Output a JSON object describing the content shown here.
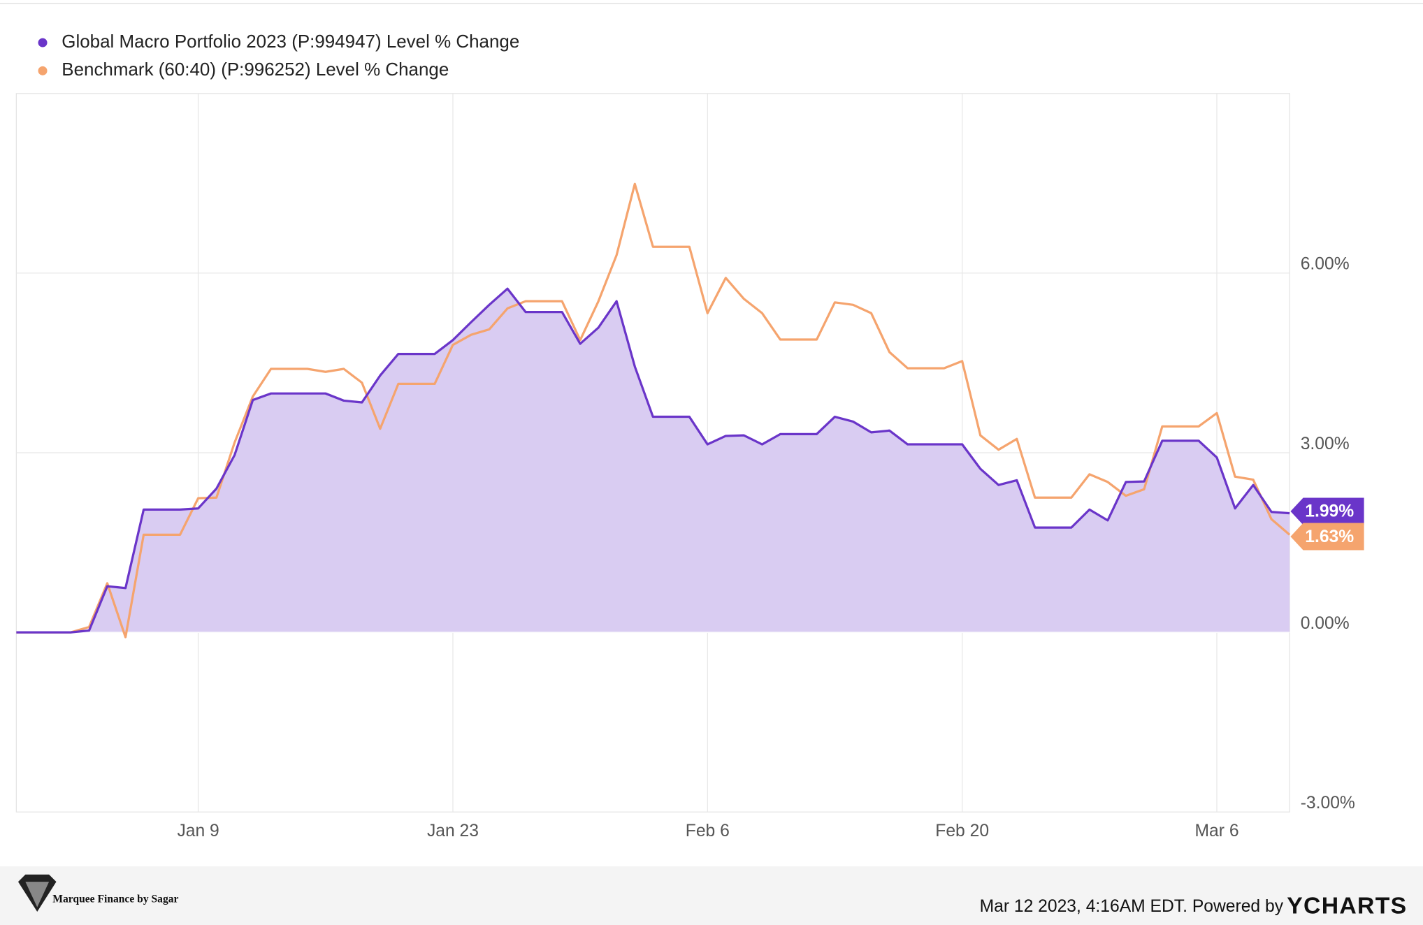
{
  "chart_data": {
    "type": "area-line",
    "categories": [
      null,
      null,
      null,
      null,
      null,
      null,
      null,
      null,
      null,
      null,
      "Jan 9",
      null,
      null,
      null,
      null,
      null,
      null,
      null,
      null,
      null,
      null,
      null,
      null,
      null,
      "Jan 23",
      null,
      null,
      null,
      null,
      null,
      null,
      null,
      null,
      null,
      null,
      null,
      null,
      null,
      "Feb 6",
      null,
      null,
      null,
      null,
      null,
      null,
      null,
      null,
      null,
      null,
      null,
      null,
      null,
      "Feb 20",
      null,
      null,
      null,
      null,
      null,
      null,
      null,
      null,
      null,
      null,
      null,
      null,
      null,
      "Mar 6",
      null,
      null,
      null,
      null
    ],
    "series": [
      {
        "name": "Global Macro Portfolio 2023 (P:994947) Level % Change",
        "color": "#6a35c9",
        "fill": "#d9ccf2",
        "values": [
          0,
          0,
          0,
          0,
          0.03,
          0.77,
          0.74,
          2.05,
          2.05,
          2.05,
          2.07,
          2.4,
          2.96,
          3.88,
          3.99,
          3.99,
          3.99,
          3.99,
          3.87,
          3.84,
          4.29,
          4.65,
          4.65,
          4.65,
          4.88,
          5.18,
          5.47,
          5.74,
          5.35,
          5.35,
          5.35,
          4.82,
          5.09,
          5.53,
          4.44,
          3.6,
          3.6,
          3.6,
          3.14,
          3.28,
          3.29,
          3.14,
          3.31,
          3.31,
          3.31,
          3.6,
          3.52,
          3.34,
          3.37,
          3.14,
          3.14,
          3.14,
          3.14,
          2.73,
          2.46,
          2.54,
          1.75,
          1.75,
          1.75,
          2.05,
          1.87,
          2.51,
          2.52,
          3.2,
          3.2,
          3.2,
          2.92,
          2.07,
          2.46,
          2.01,
          1.99
        ],
        "value_labels": [
          null,
          null,
          null,
          null,
          null,
          null,
          null,
          null,
          null,
          null,
          null,
          null,
          null,
          null,
          null,
          null,
          null,
          null,
          null,
          null,
          null,
          null,
          null,
          null,
          null,
          null,
          null,
          null,
          null,
          null,
          null,
          null,
          null,
          null,
          null,
          null,
          null,
          null,
          null,
          null,
          null,
          null,
          null,
          null,
          null,
          null,
          null,
          null,
          null,
          null,
          null,
          null,
          null,
          null,
          null,
          null,
          null,
          null,
          null,
          null,
          null,
          null,
          null,
          null,
          null,
          null,
          null,
          null,
          null,
          null,
          "1.99%"
        ]
      },
      {
        "name": "Benchmark (60:40) (P:996252) Level % Change",
        "color": "#f5a46e",
        "values": [
          0,
          0,
          0,
          0,
          0.09,
          0.82,
          -0.08,
          1.63,
          1.63,
          1.63,
          2.24,
          2.25,
          3.17,
          3.94,
          4.4,
          4.4,
          4.4,
          4.35,
          4.4,
          4.17,
          3.4,
          4.15,
          4.15,
          4.15,
          4.8,
          4.97,
          5.06,
          5.41,
          5.53,
          5.53,
          5.53,
          4.88,
          5.53,
          6.3,
          7.49,
          6.44,
          6.44,
          6.44,
          5.33,
          5.92,
          5.57,
          5.33,
          4.89,
          4.89,
          4.89,
          5.51,
          5.47,
          5.33,
          4.68,
          4.41,
          4.41,
          4.41,
          4.53,
          3.29,
          3.05,
          3.23,
          2.25,
          2.25,
          2.25,
          2.64,
          2.51,
          2.28,
          2.39,
          3.44,
          3.44,
          3.44,
          3.66,
          2.6,
          2.55,
          1.89,
          1.63
        ],
        "value_labels": [
          null,
          null,
          null,
          null,
          null,
          null,
          null,
          null,
          null,
          null,
          null,
          null,
          null,
          null,
          null,
          null,
          null,
          null,
          null,
          null,
          null,
          null,
          null,
          null,
          null,
          null,
          null,
          null,
          null,
          null,
          null,
          null,
          null,
          null,
          null,
          null,
          null,
          null,
          null,
          null,
          null,
          null,
          null,
          null,
          null,
          null,
          null,
          null,
          null,
          null,
          null,
          null,
          null,
          null,
          null,
          null,
          null,
          null,
          null,
          null,
          null,
          null,
          null,
          null,
          null,
          null,
          null,
          null,
          null,
          null,
          "1.63%"
        ]
      }
    ],
    "ylim": [
      -3,
      9
    ],
    "yticks": [
      {
        "value": -3,
        "label": "-3.00%"
      },
      {
        "value": 0,
        "label": "0.00%"
      },
      {
        "value": 3,
        "label": "3.00%"
      },
      {
        "value": 6,
        "label": "6.00%"
      }
    ],
    "grid": true,
    "legend": "top-left",
    "footer": {
      "logo_text": "Marquee Finance by Sagar",
      "credit": "Mar 12 2023, 4:16AM EDT. Powered by",
      "brand": "YCHARTS"
    }
  }
}
